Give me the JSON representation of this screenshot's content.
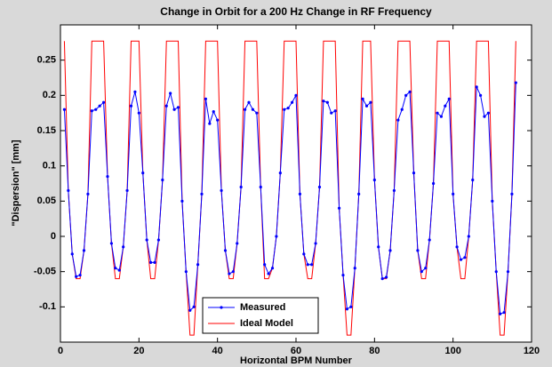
{
  "chart_data": {
    "type": "line",
    "title": "Change in Orbit for a 200 Hz Change in RF Frequency",
    "x_label": "Horizontal BPM Number",
    "y_label": "\"Dispersion\" [mm]",
    "x": [
      1,
      2,
      3,
      4,
      5,
      6,
      7,
      8,
      9,
      10,
      11,
      12,
      13,
      14,
      15,
      16,
      17,
      18,
      19,
      20,
      21,
      22,
      23,
      24,
      25,
      26,
      27,
      28,
      29,
      30,
      31,
      32,
      33,
      34,
      35,
      36,
      37,
      38,
      39,
      40,
      41,
      42,
      43,
      44,
      45,
      46,
      47,
      48,
      49,
      50,
      51,
      52,
      53,
      54,
      55,
      56,
      57,
      58,
      59,
      60,
      61,
      62,
      63,
      64,
      65,
      66,
      67,
      68,
      69,
      70,
      71,
      72,
      73,
      74,
      75,
      76,
      77,
      78,
      79,
      80,
      81,
      82,
      83,
      84,
      85,
      86,
      87,
      88,
      89,
      90,
      91,
      92,
      93,
      94,
      95,
      96,
      97,
      98,
      99,
      100,
      101,
      102,
      103,
      104,
      105,
      106,
      107,
      108,
      109,
      110,
      111,
      112,
      113,
      114,
      115,
      116
    ],
    "series": [
      {
        "name": "Measured",
        "color": "#0000ff",
        "markers": true,
        "values": [
          0.18,
          0.065,
          -0.025,
          -0.057,
          -0.055,
          -0.02,
          0.06,
          0.178,
          0.18,
          0.185,
          0.19,
          0.085,
          -0.01,
          -0.045,
          -0.048,
          -0.015,
          0.065,
          0.185,
          0.205,
          0.175,
          0.09,
          -0.005,
          -0.037,
          -0.037,
          -0.005,
          0.08,
          0.185,
          0.203,
          0.18,
          0.183,
          0.05,
          -0.05,
          -0.105,
          -0.1,
          -0.04,
          0.06,
          0.195,
          0.16,
          0.177,
          0.165,
          0.065,
          -0.02,
          -0.053,
          -0.05,
          -0.01,
          0.07,
          0.18,
          0.19,
          0.18,
          0.175,
          0.07,
          -0.04,
          -0.053,
          -0.045,
          0.0,
          0.09,
          0.18,
          0.182,
          0.19,
          0.2,
          0.06,
          -0.025,
          -0.04,
          -0.04,
          -0.01,
          0.07,
          0.192,
          0.19,
          0.175,
          0.178,
          0.04,
          -0.055,
          -0.103,
          -0.1,
          -0.045,
          0.06,
          0.195,
          0.185,
          0.19,
          0.08,
          -0.015,
          -0.06,
          -0.058,
          -0.02,
          0.065,
          0.165,
          0.18,
          0.2,
          0.205,
          0.09,
          -0.02,
          -0.05,
          -0.045,
          -0.005,
          0.075,
          0.175,
          0.17,
          0.185,
          0.195,
          0.06,
          -0.015,
          -0.033,
          -0.03,
          0.0,
          0.08,
          0.212,
          0.2,
          0.17,
          0.175,
          0.05,
          -0.05,
          -0.11,
          -0.108,
          -0.05,
          0.06,
          0.218
        ]
      },
      {
        "name": "Ideal Model",
        "color": "#ff0000",
        "markers": false,
        "values": [
          0.277,
          0.065,
          -0.025,
          -0.06,
          -0.06,
          -0.02,
          0.06,
          0.277,
          0.277,
          0.277,
          0.277,
          0.085,
          -0.01,
          -0.06,
          -0.06,
          -0.015,
          0.065,
          0.277,
          0.277,
          0.277,
          0.09,
          -0.005,
          -0.06,
          -0.06,
          -0.005,
          0.08,
          0.277,
          0.277,
          0.277,
          0.277,
          0.05,
          -0.05,
          -0.14,
          -0.14,
          -0.04,
          0.06,
          0.277,
          0.277,
          0.277,
          0.277,
          0.065,
          -0.02,
          -0.06,
          -0.06,
          -0.01,
          0.07,
          0.277,
          0.277,
          0.277,
          0.277,
          0.07,
          -0.06,
          -0.06,
          -0.045,
          0.0,
          0.09,
          0.277,
          0.277,
          0.277,
          0.277,
          0.06,
          -0.025,
          -0.06,
          -0.06,
          -0.01,
          0.07,
          0.277,
          0.277,
          0.277,
          0.277,
          0.04,
          -0.055,
          -0.14,
          -0.14,
          -0.045,
          0.06,
          0.277,
          0.277,
          0.277,
          0.08,
          -0.015,
          -0.06,
          -0.06,
          -0.02,
          0.065,
          0.277,
          0.277,
          0.277,
          0.277,
          0.09,
          -0.02,
          -0.06,
          -0.06,
          -0.005,
          0.075,
          0.277,
          0.277,
          0.277,
          0.277,
          0.06,
          -0.015,
          -0.06,
          -0.06,
          0.0,
          0.08,
          0.277,
          0.277,
          0.277,
          0.277,
          0.05,
          -0.05,
          -0.14,
          -0.14,
          -0.05,
          0.06,
          0.277
        ]
      }
    ],
    "xlim": [
      0,
      120
    ],
    "xticks": [
      0,
      20,
      40,
      60,
      80,
      100,
      120
    ],
    "ylim": [
      -0.15,
      0.3
    ],
    "yticks": [
      -0.1,
      -0.05,
      0,
      0.05,
      0.1,
      0.15,
      0.2,
      0.25
    ],
    "legend": "lower center"
  }
}
